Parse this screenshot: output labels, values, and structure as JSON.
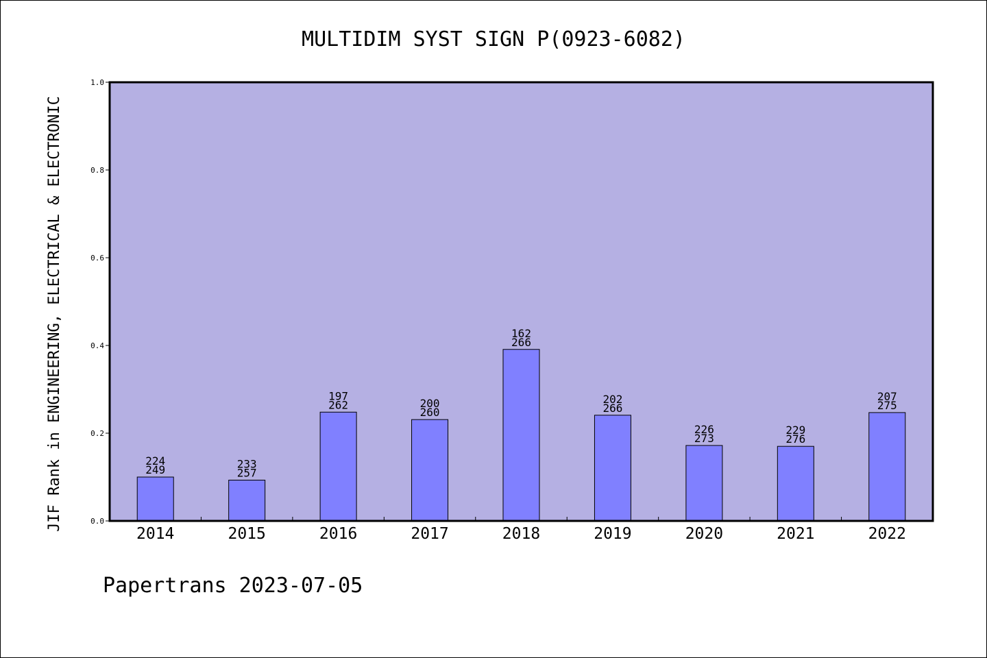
{
  "chart_data": {
    "type": "bar",
    "title": "MULTIDIM SYST SIGN P(0923-6082)",
    "xlabel": "",
    "ylabel": "JIF Rank in ENGINEERING, ELECTRICAL & ELECTRONIC",
    "categories": [
      "2014",
      "2015",
      "2016",
      "2017",
      "2018",
      "2019",
      "2020",
      "2021",
      "2022"
    ],
    "values": [
      0.1,
      0.093,
      0.248,
      0.231,
      0.391,
      0.241,
      0.172,
      0.17,
      0.247
    ],
    "rank_labels": [
      "224",
      "233",
      "197",
      "200",
      "162",
      "202",
      "226",
      "229",
      "207"
    ],
    "total_labels": [
      "249",
      "257",
      "262",
      "260",
      "266",
      "266",
      "273",
      "276",
      "275"
    ],
    "ylim": [
      0,
      1.0
    ],
    "yticks": [
      "0.0",
      "0.2",
      "0.4",
      "0.6",
      "0.8",
      "1.0"
    ],
    "grid": false,
    "legend": "none",
    "colors": {
      "plot_background": "#b5b0e3",
      "bar_fill": "#8080ff",
      "bar_stroke": "#000000"
    }
  },
  "footer": "Papertrans 2023-07-05"
}
